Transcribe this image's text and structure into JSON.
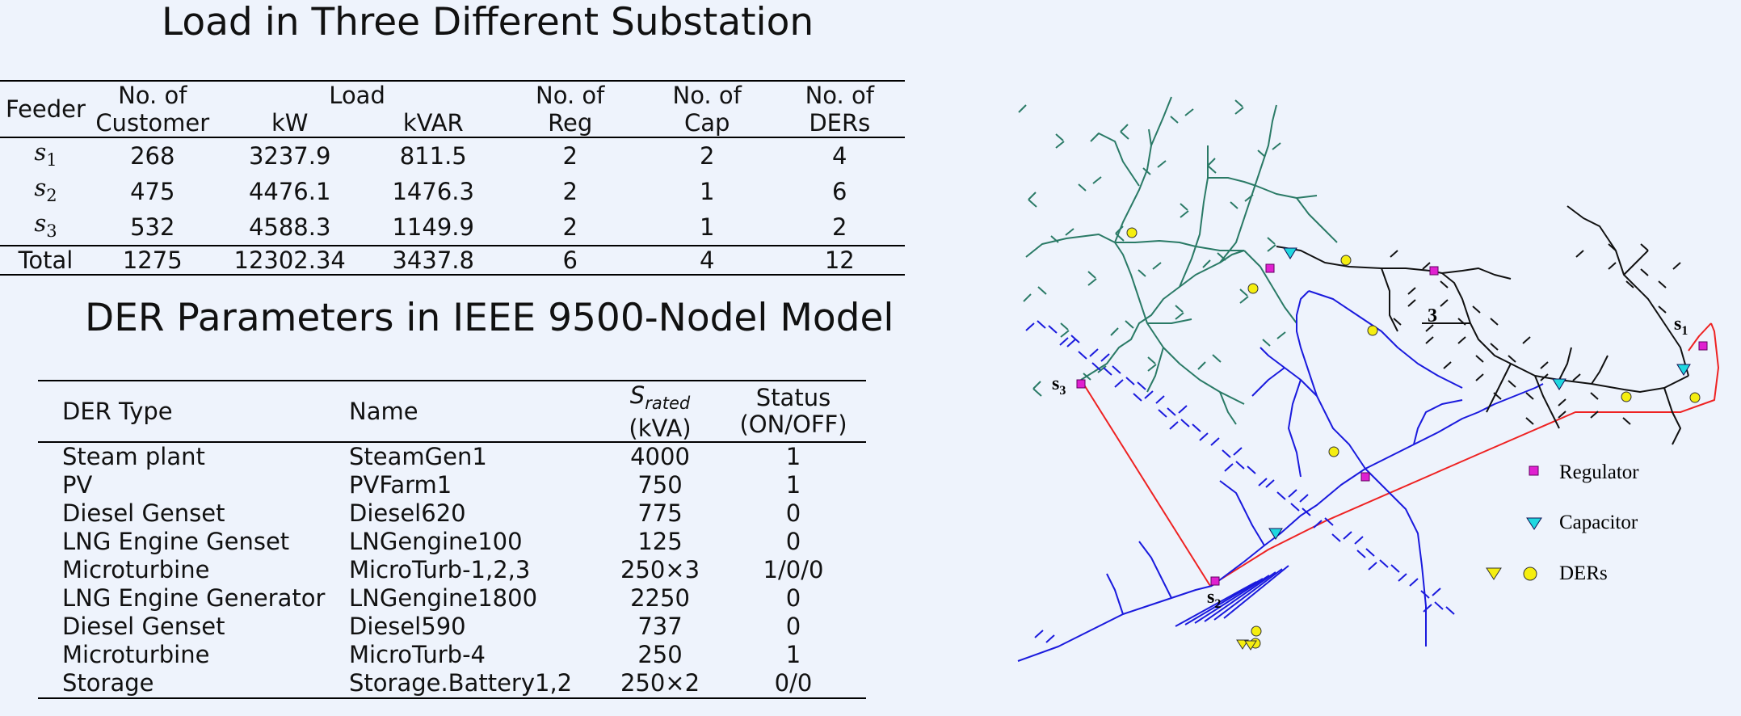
{
  "load_section": {
    "title": "Load in Three Different Substation",
    "headers": {
      "feeder": "Feeder",
      "no_of_1": "No. of",
      "customer": "Customer",
      "load": "Load",
      "kw": "kW",
      "kvar": "kVAR",
      "no_of_2": "No. of",
      "reg": "Reg",
      "no_of_3": "No. of",
      "cap": "Cap",
      "no_of_4": "No. of",
      "ders": "DERs"
    },
    "rows": [
      {
        "feeder": "s",
        "sub": "1",
        "customer": "268",
        "kw": "3237.9",
        "kvar": "811.5",
        "reg": "2",
        "cap": "2",
        "ders": "4"
      },
      {
        "feeder": "s",
        "sub": "2",
        "customer": "475",
        "kw": "4476.1",
        "kvar": "1476.3",
        "reg": "2",
        "cap": "1",
        "ders": "6"
      },
      {
        "feeder": "s",
        "sub": "3",
        "customer": "532",
        "kw": "4588.3",
        "kvar": "1149.9",
        "reg": "2",
        "cap": "1",
        "ders": "2"
      }
    ],
    "total": {
      "label": "Total",
      "customer": "1275",
      "kw": "12302.34",
      "kvar": "3437.8",
      "reg": "6",
      "cap": "4",
      "ders": "12"
    }
  },
  "der_section": {
    "title": "DER Parameters in IEEE 9500-Nodel Model",
    "headers": {
      "type": "DER Type",
      "name": "Name",
      "srated": "S",
      "srated_sub": "rated",
      "srated_unit": "(kVA)",
      "status": "Status",
      "status_unit": "(ON/OFF)"
    },
    "rows": [
      {
        "type": "Steam plant",
        "name": "SteamGen1",
        "srated": "4000",
        "status": "1"
      },
      {
        "type": "PV",
        "name": "PVFarm1",
        "srated": "750",
        "status": "1"
      },
      {
        "type": "Diesel Genset",
        "name": "Diesel620",
        "srated": "775",
        "status": "0"
      },
      {
        "type": "LNG Engine Genset",
        "name": "LNGengine100",
        "srated": "125",
        "status": "0"
      },
      {
        "type": "Microturbine",
        "name": "MicroTurb-1,2,3",
        "srated": "250×3",
        "status": "1/0/0"
      },
      {
        "type": "LNG Engine Generator",
        "name": "LNGengine1800",
        "srated": "2250",
        "status": "0"
      },
      {
        "type": "Diesel Genset",
        "name": "Diesel590",
        "srated": "737",
        "status": "0"
      },
      {
        "type": "Microturbine",
        "name": "MicroTurb-4",
        "srated": "250",
        "status": "1"
      },
      {
        "type": "Storage",
        "name": "Storage.Battery1,2",
        "srated": "250×2",
        "status": "0/0"
      }
    ]
  },
  "network_map": {
    "labels": {
      "s1": "s",
      "s1_sub": "1",
      "s2": "s",
      "s2_sub": "2",
      "s3": "s",
      "s3_sub": "3",
      "s3_mid": "3"
    },
    "legend": {
      "regulator": "Regulator",
      "capacitor": "Capacitor",
      "ders": "DERs"
    },
    "colors": {
      "feeder_s3": "#2a7a66",
      "feeder_s2": "#1a1add",
      "feeder_s1": "#111111",
      "tie_line": "#ee2222",
      "regulator": "#e020d0",
      "capacitor": "#20d8e0",
      "der": "#f5ee10"
    }
  }
}
